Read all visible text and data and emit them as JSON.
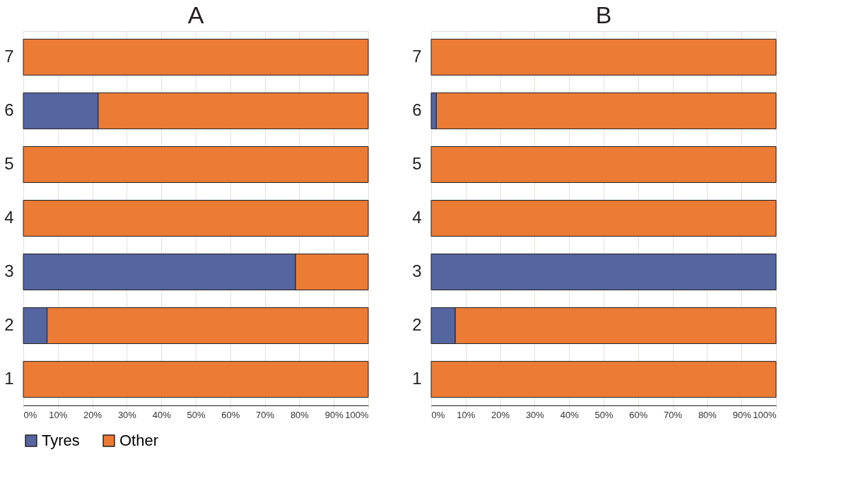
{
  "chart_data": [
    {
      "type": "bar",
      "title": "A",
      "orientation": "horizontal",
      "stacked": true,
      "categories": [
        "7",
        "6",
        "5",
        "4",
        "3",
        "2",
        "1"
      ],
      "series": [
        {
          "name": "Tyres",
          "color": "#5565a0",
          "values": [
            0,
            21.7,
            0,
            0,
            78.9,
            6.9,
            0
          ]
        },
        {
          "name": "Other",
          "color": "#ec7b36",
          "values": [
            100,
            78.3,
            100,
            100,
            21.1,
            93.1,
            100
          ]
        }
      ],
      "xlim": [
        0,
        100
      ],
      "xticks": [
        {
          "value": 0,
          "label": "0%"
        },
        {
          "value": 10,
          "label": "10%"
        },
        {
          "value": 20,
          "label": "20%"
        },
        {
          "value": 30,
          "label": "30%"
        },
        {
          "value": 40,
          "label": "40%"
        },
        {
          "value": 50,
          "label": "50%"
        },
        {
          "value": 60,
          "label": "60%"
        },
        {
          "value": 70,
          "label": "70%"
        },
        {
          "value": 80,
          "label": "80%"
        },
        {
          "value": 90,
          "label": "90%"
        },
        {
          "value": 100,
          "label": "100%"
        }
      ],
      "grid": "x",
      "legend": "bottom"
    },
    {
      "type": "bar",
      "title": "B",
      "orientation": "horizontal",
      "stacked": true,
      "categories": [
        "7",
        "6",
        "5",
        "4",
        "3",
        "2",
        "1"
      ],
      "series": [
        {
          "name": "Tyres",
          "color": "#5565a0",
          "values": [
            0,
            1.5,
            0,
            0,
            100,
            7.0,
            0
          ]
        },
        {
          "name": "Other",
          "color": "#ec7b36",
          "values": [
            100,
            98.5,
            100,
            100,
            0,
            93.0,
            100
          ]
        }
      ],
      "xlim": [
        0,
        100
      ],
      "xticks": [
        {
          "value": 0,
          "label": "0%"
        },
        {
          "value": 10,
          "label": "10%"
        },
        {
          "value": 20,
          "label": "20%"
        },
        {
          "value": 30,
          "label": "30%"
        },
        {
          "value": 40,
          "label": "40%"
        },
        {
          "value": 50,
          "label": "50%"
        },
        {
          "value": 60,
          "label": "60%"
        },
        {
          "value": 70,
          "label": "70%"
        },
        {
          "value": 80,
          "label": "80%"
        },
        {
          "value": 90,
          "label": "90%"
        },
        {
          "value": 100,
          "label": "100%"
        }
      ],
      "grid": "x",
      "legend": "bottom"
    }
  ]
}
